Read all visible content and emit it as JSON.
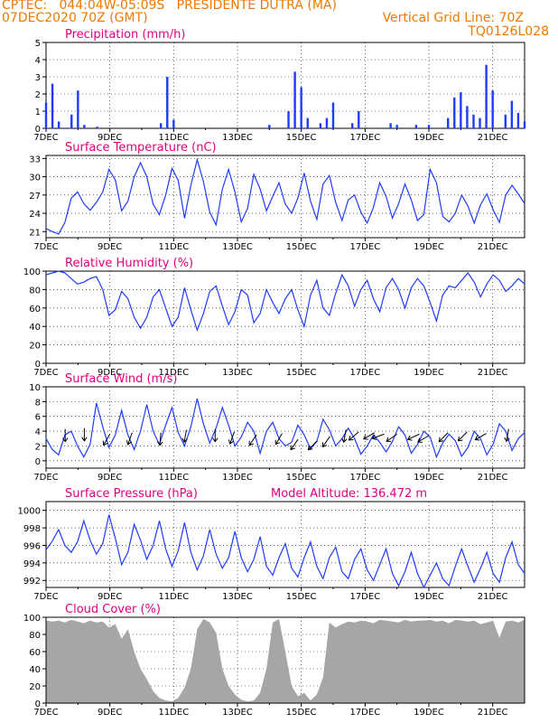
{
  "header": {
    "line1_left": "CPTEC:   044:04W-05:09S   PRESIDENTE DUTRA (MA)",
    "line2_left": "07DEC2020 70Z (GMT)",
    "line2_right": "Vertical Grid Line: 70Z",
    "line3_right": "TQ0126L028"
  },
  "colors": {
    "header": "#f07800",
    "title": "#e0007f",
    "series": "#1e3cff",
    "cloud": "#a6a6a6",
    "axis": "#000000"
  },
  "chart_data": [
    {
      "id": "precip",
      "type": "bar",
      "title": "Precipitation (mm/h)",
      "x_tick_labels": [
        "7DEC",
        "9DEC",
        "11DEC",
        "13DEC",
        "15DEC",
        "17DEC",
        "19DEC",
        "21DEC"
      ],
      "x_range_days": [
        0,
        15
      ],
      "ylim": [
        0,
        5
      ],
      "y_ticks": [
        0,
        1,
        2,
        3,
        4,
        5
      ],
      "hourly_y": [
        [
          0,
          1.5
        ],
        [
          0.2,
          2.6
        ],
        [
          0.4,
          0.4
        ],
        [
          0.8,
          0.8
        ],
        [
          1.0,
          2.2
        ],
        [
          1.2,
          0.2
        ],
        [
          1.6,
          0.1
        ],
        [
          3.6,
          0.3
        ],
        [
          3.8,
          3.0
        ],
        [
          4.0,
          0.5
        ],
        [
          7.0,
          0.2
        ],
        [
          7.6,
          1.0
        ],
        [
          7.8,
          3.3
        ],
        [
          8.0,
          2.4
        ],
        [
          8.2,
          0.6
        ],
        [
          8.6,
          0.3
        ],
        [
          8.8,
          0.6
        ],
        [
          9.0,
          1.5
        ],
        [
          9.6,
          0.3
        ],
        [
          9.8,
          1.0
        ],
        [
          10.8,
          0.3
        ],
        [
          11.0,
          0.2
        ],
        [
          11.6,
          0.2
        ],
        [
          12.0,
          0.2
        ],
        [
          12.6,
          0.6
        ],
        [
          12.8,
          1.8
        ],
        [
          13.0,
          2.1
        ],
        [
          13.2,
          1.3
        ],
        [
          13.4,
          0.8
        ],
        [
          13.6,
          0.6
        ],
        [
          13.8,
          3.7
        ],
        [
          14.0,
          2.2
        ],
        [
          14.4,
          0.8
        ],
        [
          14.6,
          1.6
        ],
        [
          14.8,
          0.9
        ],
        [
          15.0,
          0.4
        ]
      ],
      "hourly_y_note": "pairs of [days since 7DEC 00Z, mm/h]"
    },
    {
      "id": "temp",
      "type": "line",
      "title": "Surface Temperature (nC)",
      "x_tick_labels": [
        "7DEC",
        "9DEC",
        "11DEC",
        "13DEC",
        "15DEC",
        "17DEC",
        "19DEC",
        "21DEC"
      ],
      "x_range_days": [
        0,
        15
      ],
      "ylim": [
        20,
        33.5
      ],
      "y_ticks": [
        21,
        24,
        27,
        30,
        33
      ],
      "values": [
        21.5,
        21.0,
        20.6,
        22.5,
        26.5,
        27.5,
        25.6,
        24.5,
        25.8,
        27.5,
        31.2,
        29.5,
        24.4,
        26.0,
        30.0,
        32.3,
        30.0,
        25.5,
        23.8,
        27.0,
        31.4,
        29.4,
        23.2,
        28.6,
        32.8,
        29.2,
        24.2,
        22.1,
        28.0,
        31.2,
        27.5,
        22.6,
        24.8,
        30.4,
        28.0,
        24.4,
        26.8,
        29.0,
        25.5,
        24.0,
        26.5,
        30.6,
        26.0,
        23.0,
        28.8,
        30.2,
        25.8,
        22.8,
        26.2,
        27.0,
        24.2,
        22.4,
        25.0,
        29.0,
        26.8,
        23.2,
        25.6,
        28.8,
        26.2,
        22.8,
        23.8,
        31.2,
        29.0,
        23.5,
        22.6,
        24.0,
        27.0,
        25.2,
        22.4,
        25.4,
        27.2,
        24.6,
        22.5,
        27.0,
        28.6,
        27.2,
        25.6
      ],
      "values_note": "one value per 5 hours, sampled from day 0 to day 15"
    },
    {
      "id": "rh",
      "type": "line",
      "title": "Relative Humidity (%)",
      "x_tick_labels": [
        "7DEC",
        "9DEC",
        "11DEC",
        "13DEC",
        "15DEC",
        "17DEC",
        "19DEC",
        "21DEC"
      ],
      "x_range_days": [
        0,
        15
      ],
      "ylim": [
        0,
        100
      ],
      "y_ticks": [
        0,
        20,
        40,
        60,
        80,
        100
      ],
      "values": [
        96,
        98,
        100,
        98,
        92,
        86,
        88,
        92,
        94,
        80,
        52,
        58,
        78,
        70,
        50,
        38,
        50,
        72,
        80,
        60,
        40,
        50,
        82,
        58,
        36,
        54,
        78,
        84,
        62,
        42,
        56,
        80,
        74,
        44,
        54,
        80,
        66,
        54,
        70,
        80,
        58,
        40,
        74,
        90,
        60,
        52,
        76,
        96,
        84,
        62,
        80,
        90,
        70,
        56,
        82,
        92,
        80,
        60,
        82,
        92,
        84,
        66,
        46,
        74,
        84,
        82,
        90,
        98,
        88,
        72,
        86,
        96,
        90,
        78,
        84,
        92,
        86
      ],
      "values_note": "one value per 5 hours"
    },
    {
      "id": "wind",
      "type": "line",
      "title": "Surface Wind (m/s)",
      "x_tick_labels": [
        "7DEC",
        "9DEC",
        "11DEC",
        "13DEC",
        "15DEC",
        "17DEC",
        "19DEC",
        "21DEC"
      ],
      "x_range_days": [
        0,
        15
      ],
      "ylim": [
        -1,
        10
      ],
      "y_ticks": [
        0,
        2,
        4,
        6,
        8,
        10
      ],
      "values": [
        3.0,
        1.5,
        0.8,
        3.5,
        4.0,
        2.0,
        0.5,
        2.2,
        7.8,
        4.6,
        1.8,
        3.5,
        6.8,
        3.5,
        1.5,
        4.0,
        7.6,
        4.0,
        2.2,
        4.8,
        7.2,
        3.8,
        2.0,
        4.6,
        8.4,
        5.0,
        2.4,
        4.4,
        7.2,
        4.8,
        2.0,
        3.2,
        5.2,
        4.0,
        1.0,
        4.0,
        5.2,
        3.0,
        2.0,
        2.5,
        4.8,
        3.5,
        1.6,
        2.6,
        5.6,
        4.2,
        2.0,
        3.0,
        4.4,
        3.0,
        0.9,
        2.0,
        3.5,
        2.5,
        1.2,
        2.6,
        4.6,
        3.5,
        1.0,
        2.2,
        4.0,
        3.2,
        0.5,
        2.4,
        3.6,
        2.7,
        0.6,
        1.8,
        4.0,
        3.0,
        0.8,
        2.2,
        5.0,
        4.0,
        1.4,
        3.0,
        3.8
      ],
      "values_note": "speed, one value per 5 hours",
      "wind_arrows": [
        [
          0.6,
          4.3,
          90
        ],
        [
          1.2,
          4.4,
          90
        ],
        [
          2.0,
          3.6,
          60
        ],
        [
          2.7,
          3.8,
          70
        ],
        [
          3.6,
          3.8,
          85
        ],
        [
          4.4,
          4.2,
          80
        ],
        [
          5.3,
          4.3,
          90
        ],
        [
          5.9,
          3.9,
          70
        ],
        [
          6.6,
          3.5,
          55
        ],
        [
          7.4,
          3.7,
          60
        ],
        [
          7.9,
          2.9,
          55
        ],
        [
          8.5,
          2.7,
          45
        ],
        [
          8.9,
          3.3,
          55
        ],
        [
          9.4,
          4.2,
          80
        ],
        [
          9.8,
          3.9,
          40
        ],
        [
          10.3,
          3.8,
          30
        ],
        [
          10.6,
          3.6,
          20
        ],
        [
          11.0,
          3.6,
          35
        ],
        [
          11.7,
          3.6,
          25
        ],
        [
          12.0,
          3.4,
          30
        ],
        [
          12.6,
          3.8,
          45
        ],
        [
          13.2,
          3.9,
          45
        ],
        [
          13.8,
          3.7,
          30
        ],
        [
          14.5,
          4.3,
          80
        ]
      ],
      "wind_arrows_note": "triples of [day, speed m/s, direction in degrees the arrow points from east]"
    },
    {
      "id": "pres",
      "type": "line",
      "title": "Surface Pressure (hPa)",
      "annotation": "Model Altitude: 136.472 m",
      "x_tick_labels": [
        "7DEC",
        "9DEC",
        "11DEC",
        "13DEC",
        "15DEC",
        "17DEC",
        "19DEC",
        "21DEC"
      ],
      "x_range_days": [
        0,
        15
      ],
      "ylim": [
        991.2,
        1001
      ],
      "y_ticks": [
        992,
        994,
        996,
        998,
        1000
      ],
      "values": [
        995.5,
        996.5,
        997.8,
        996.0,
        995.2,
        996.4,
        998.8,
        996.6,
        995.0,
        996.2,
        999.5,
        996.8,
        993.8,
        995.2,
        998.4,
        996.6,
        994.4,
        996.0,
        998.8,
        995.6,
        993.6,
        995.4,
        998.6,
        995.2,
        993.2,
        994.8,
        997.8,
        995.0,
        993.4,
        994.6,
        997.6,
        994.6,
        993.0,
        994.4,
        997.0,
        993.6,
        992.6,
        994.6,
        996.2,
        993.4,
        992.4,
        994.6,
        996.4,
        993.6,
        992.2,
        994.6,
        995.8,
        993.0,
        992.2,
        994.4,
        995.6,
        993.2,
        992.0,
        993.8,
        995.6,
        992.8,
        991.4,
        993.0,
        995.2,
        992.8,
        991.2,
        992.6,
        994.0,
        992.2,
        991.4,
        993.6,
        995.6,
        993.6,
        991.8,
        993.4,
        995.2,
        992.8,
        991.8,
        994.6,
        996.4,
        993.8,
        992.8
      ],
      "values_note": "one value per 5 hours"
    },
    {
      "id": "cloud",
      "type": "area",
      "title": "Cloud Cover (%)",
      "x_tick_labels": [
        "7DEC",
        "9DEC",
        "11DEC",
        "13DEC",
        "15DEC",
        "17DEC",
        "19DEC",
        "21DEC"
      ],
      "x_range_days": [
        0,
        15
      ],
      "ylim": [
        0,
        100
      ],
      "y_ticks": [
        0,
        20,
        40,
        60,
        80,
        100
      ],
      "values": [
        96,
        95,
        96,
        94,
        97,
        95,
        93,
        96,
        94,
        95,
        88,
        92,
        75,
        86,
        60,
        40,
        28,
        14,
        6,
        3,
        2,
        6,
        18,
        40,
        86,
        98,
        94,
        82,
        40,
        20,
        10,
        4,
        2,
        3,
        12,
        40,
        94,
        98,
        60,
        20,
        8,
        12,
        3,
        10,
        30,
        94,
        88,
        92,
        95,
        94,
        96,
        95,
        93,
        97,
        96,
        95,
        94,
        97,
        95,
        96,
        96,
        97,
        95,
        96,
        93,
        97,
        96,
        95,
        96,
        92,
        94,
        96,
        76,
        95,
        96,
        94,
        97
      ],
      "values_note": "one value per 5 hours"
    }
  ]
}
